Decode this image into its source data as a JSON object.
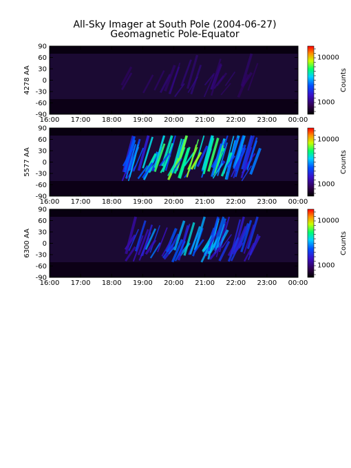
{
  "figure": {
    "title_line1": "All-Sky Imager at South Pole (2004-06-27)",
    "title_line2": "Geomagnetic Pole-Equator"
  },
  "chart_data": [
    {
      "type": "heatmap",
      "ylabel": "4278 AA",
      "colorbar_label": "Counts",
      "colorbar_ticks": [
        "10000",
        "1000"
      ],
      "x_ticks": [
        "16:00",
        "17:00",
        "18:00",
        "19:00",
        "20:00",
        "21:00",
        "22:00",
        "23:00",
        "00:00"
      ],
      "y_ticks": [
        "90",
        "60",
        "30",
        "0",
        "-30",
        "-60",
        "-90"
      ],
      "xlim": [
        "16:00",
        "00:00"
      ],
      "ylim": [
        -90,
        90
      ],
      "color_scale": "log",
      "colormap": "rainbow",
      "activity": "low"
    },
    {
      "type": "heatmap",
      "ylabel": "5577 AA",
      "colorbar_label": "Counts",
      "colorbar_ticks": [
        "10000",
        "1000"
      ],
      "x_ticks": [
        "16:00",
        "17:00",
        "18:00",
        "19:00",
        "20:00",
        "21:00",
        "22:00",
        "23:00",
        "00:00"
      ],
      "y_ticks": [
        "90",
        "60",
        "30",
        "0",
        "-30",
        "-60",
        "-90"
      ],
      "xlim": [
        "16:00",
        "00:00"
      ],
      "ylim": [
        -90,
        90
      ],
      "color_scale": "log",
      "colormap": "rainbow",
      "activity": "high"
    },
    {
      "type": "heatmap",
      "ylabel": "6300 AA",
      "colorbar_label": "Counts",
      "colorbar_ticks": [
        "10000",
        "1000"
      ],
      "x_ticks": [
        "16:00",
        "17:00",
        "18:00",
        "19:00",
        "20:00",
        "21:00",
        "22:00",
        "23:00",
        "00:00"
      ],
      "y_ticks": [
        "90",
        "60",
        "30",
        "0",
        "-30",
        "-60",
        "-90"
      ],
      "xlim": [
        "16:00",
        "00:00"
      ],
      "ylim": [
        -90,
        90
      ],
      "color_scale": "log",
      "colormap": "rainbow",
      "activity": "medium"
    }
  ]
}
